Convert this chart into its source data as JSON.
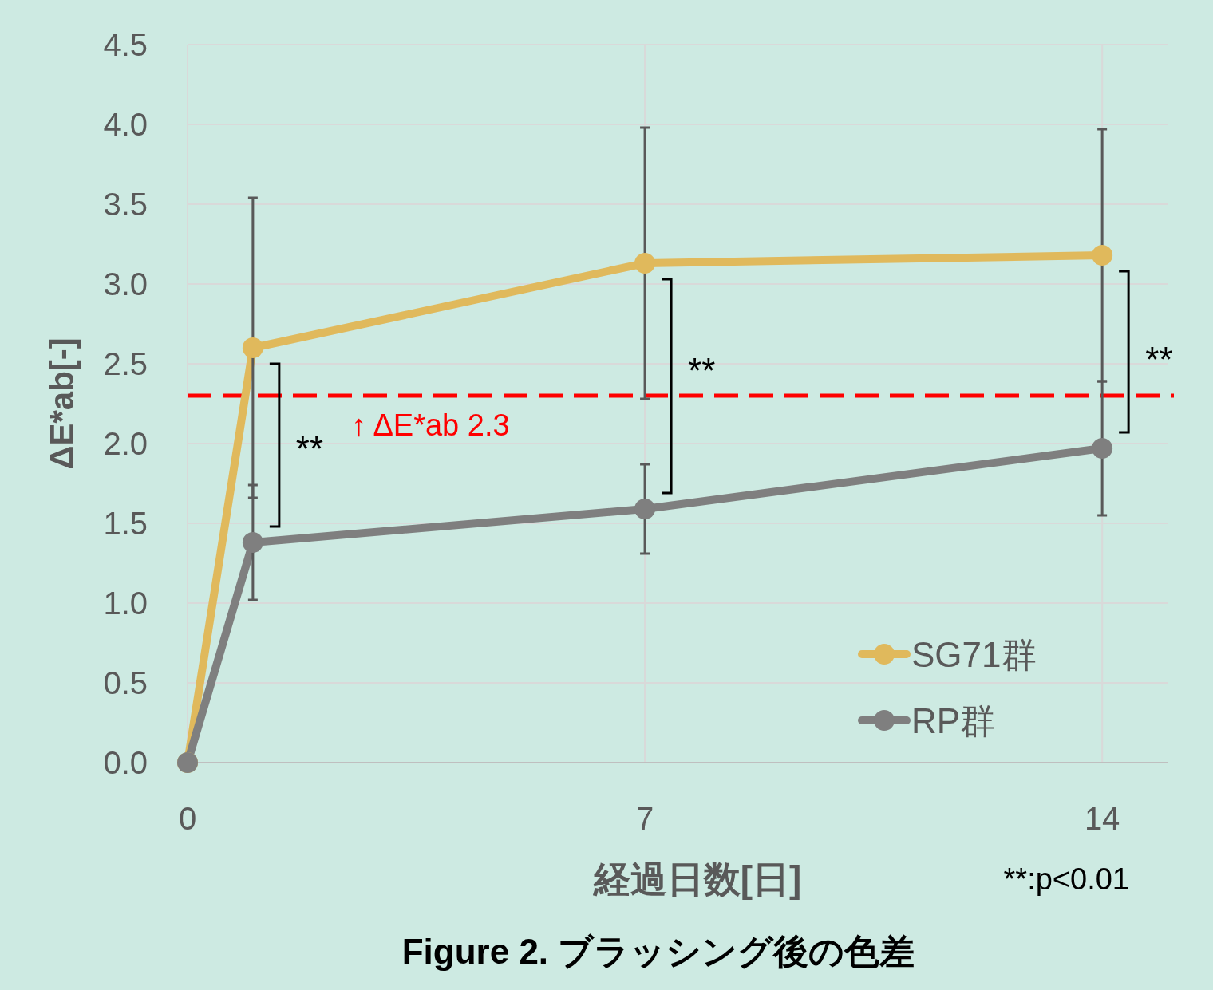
{
  "chart_data": {
    "type": "line",
    "title": "Figure 2.  ブラッシング後の色差",
    "xlabel": "経過日数[日]",
    "ylabel": "ΔE*ab[-]",
    "x": [
      0,
      1,
      7,
      14
    ],
    "series": [
      {
        "name": "SG71群",
        "color": "#e0b95c",
        "values": [
          0,
          2.6,
          3.13,
          3.18
        ],
        "errors": [
          null,
          0.94,
          0.85,
          0.79
        ]
      },
      {
        "name": "RP群",
        "color": "#7f7f7f",
        "values": [
          0,
          1.38,
          1.59,
          1.97
        ],
        "errors": [
          null,
          0.36,
          0.28,
          0.42
        ]
      }
    ],
    "xlim": [
      0,
      15
    ],
    "ylim": [
      0,
      4.5
    ],
    "xticks": [
      0,
      7,
      14
    ],
    "yticks": [
      {
        "value": 0,
        "label": "0.0"
      },
      0.5,
      {
        "value": 1,
        "label": "1.0"
      },
      1.5,
      {
        "value": 2,
        "label": "2.0"
      },
      2.5,
      {
        "value": 3,
        "label": "3.0"
      },
      3.5,
      {
        "value": 4,
        "label": "4.0"
      },
      4.5
    ],
    "grid": true,
    "legend": "bottom right",
    "marker": "circle",
    "line_style": "solid",
    "ref_lines": [
      {
        "axis": "y",
        "value": 2.3,
        "label": "↑ ΔE*ab 2.3",
        "color": "#ff0000",
        "line_style": "dashed"
      }
    ],
    "annotations": [
      {
        "text": "**",
        "x": 1,
        "y": 1.98
      },
      {
        "text": "**",
        "x": 7,
        "y": 2.47
      },
      {
        "text": "**",
        "x": 14,
        "y": 2.54
      },
      "**:p<0.01"
    ]
  }
}
